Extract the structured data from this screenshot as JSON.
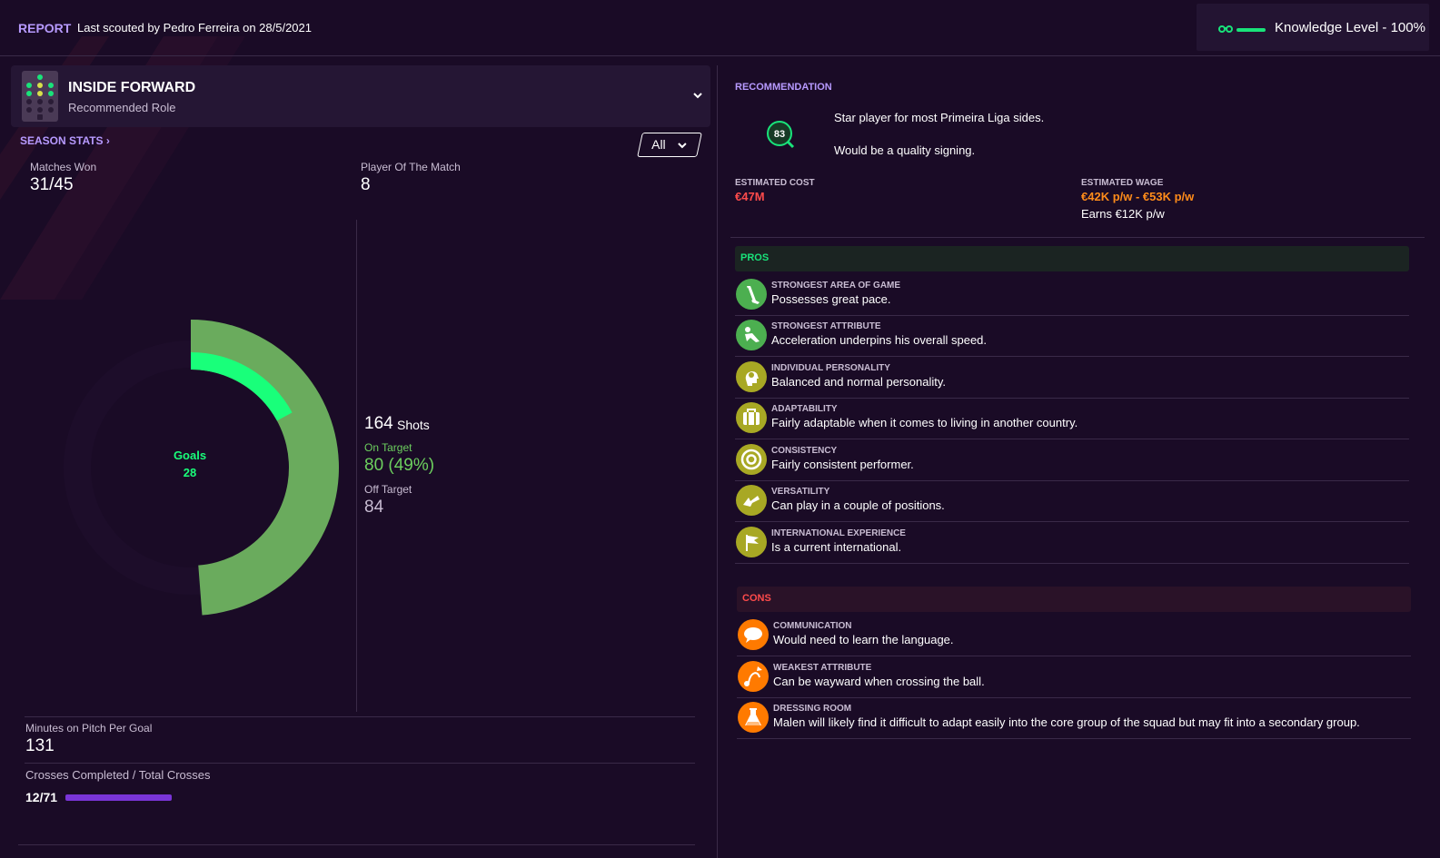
{
  "header": {
    "report_tag": "REPORT",
    "scouted_text": "Last scouted by Pedro Ferreira on 28/5/2021",
    "knowledge_level": "Knowledge Level - 100%"
  },
  "role": {
    "title": "INSIDE FORWARD",
    "subtitle": "Recommended Role"
  },
  "season_stats": {
    "link_label": "SEASON STATS",
    "filter_value": "All",
    "matches_won_label": "Matches Won",
    "matches_won_value": "31/45",
    "potm_label": "Player Of The Match",
    "potm_value": "8",
    "goals_label": "Goals",
    "goals_value": "28",
    "shots_value": "164",
    "shots_unit": "Shots",
    "on_target_label": "On Target",
    "on_target_value": "80 (49%)",
    "off_target_label": "Off Target",
    "off_target_value": "84",
    "minutes_label": "Minutes on Pitch Per Goal",
    "minutes_value": "131",
    "crosses_label": "Crosses Completed / Total Crosses",
    "crosses_value": "12/71",
    "crosses_fraction": 0.169
  },
  "chart_data": {
    "type": "pie",
    "labels": [
      "On Target",
      "Off Target",
      "Goals"
    ],
    "shots_total": 164,
    "on_target": 80,
    "off_target": 84,
    "goals": 28
  },
  "recommendation": {
    "title": "RECOMMENDATION",
    "rating": "83",
    "line1": "Star player for most Primeira Liga sides.",
    "line2": "Would be a quality signing.",
    "cost_label": "ESTIMATED COST",
    "cost_value": "€47M",
    "wage_label": "ESTIMATED WAGE",
    "wage_value": "€42K p/w - €53K p/w",
    "earns": "Earns €12K p/w"
  },
  "pros": {
    "title": "PROS",
    "items": [
      {
        "title": "STRONGEST AREA OF GAME",
        "desc": "Possesses great pace.",
        "icon": "boot-icon"
      },
      {
        "title": "STRONGEST ATTRIBUTE",
        "desc": "Acceleration underpins his overall speed.",
        "icon": "running-icon"
      },
      {
        "title": "INDIVIDUAL PERSONALITY",
        "desc": "Balanced and normal personality.",
        "icon": "head-icon"
      },
      {
        "title": "ADAPTABILITY",
        "desc": "Fairly adaptable when it comes to living in another country.",
        "icon": "suitcase-icon"
      },
      {
        "title": "CONSISTENCY",
        "desc": "Fairly consistent performer.",
        "icon": "target-icon"
      },
      {
        "title": "VERSATILITY",
        "desc": "Can play in a couple of positions.",
        "icon": "arrows-icon"
      },
      {
        "title": "INTERNATIONAL EXPERIENCE",
        "desc": "Is a current international.",
        "icon": "flag-icon"
      }
    ]
  },
  "cons": {
    "title": "CONS",
    "items": [
      {
        "title": "COMMUNICATION",
        "desc": "Would need to learn the language.",
        "icon": "speech-icon"
      },
      {
        "title": "WEAKEST ATTRIBUTE",
        "desc": "Can be wayward when crossing the ball.",
        "icon": "cross-ball-icon"
      },
      {
        "title": "DRESSING ROOM",
        "desc": "Malen will likely find it difficult to adapt easily into the core group of the squad but may fit into a secondary group.",
        "icon": "flask-icon"
      }
    ]
  },
  "colors": {
    "accent": "#b79aff",
    "pros": "#19e37a",
    "cons": "#ff4b4b",
    "cost": "#ff4b4b",
    "wage": "#ff8c1a",
    "on_target": "#6ccf5e",
    "goals": "#19ff7a",
    "crosses_bar": "#7a35d8"
  }
}
